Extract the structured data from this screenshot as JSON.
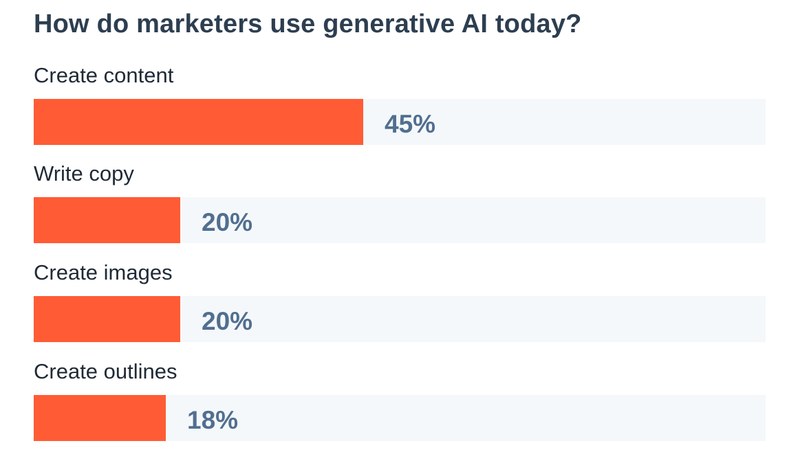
{
  "chart_data": {
    "type": "bar",
    "orientation": "horizontal",
    "title": "How do marketers use generative AI today?",
    "categories": [
      "Create content",
      "Write copy",
      "Create images",
      "Create outlines"
    ],
    "values": [
      45,
      20,
      20,
      18
    ],
    "value_labels": [
      "45%",
      "20%",
      "20%",
      "18%"
    ],
    "unit": "%",
    "xlim": [
      0,
      100
    ],
    "grid": false,
    "legend": "none",
    "colors": {
      "bar": "#ff5c35",
      "track": "#f5f8fa",
      "value_text": "#516f90",
      "title_text": "#2d3e50",
      "label_text": "#1f2a36"
    }
  }
}
